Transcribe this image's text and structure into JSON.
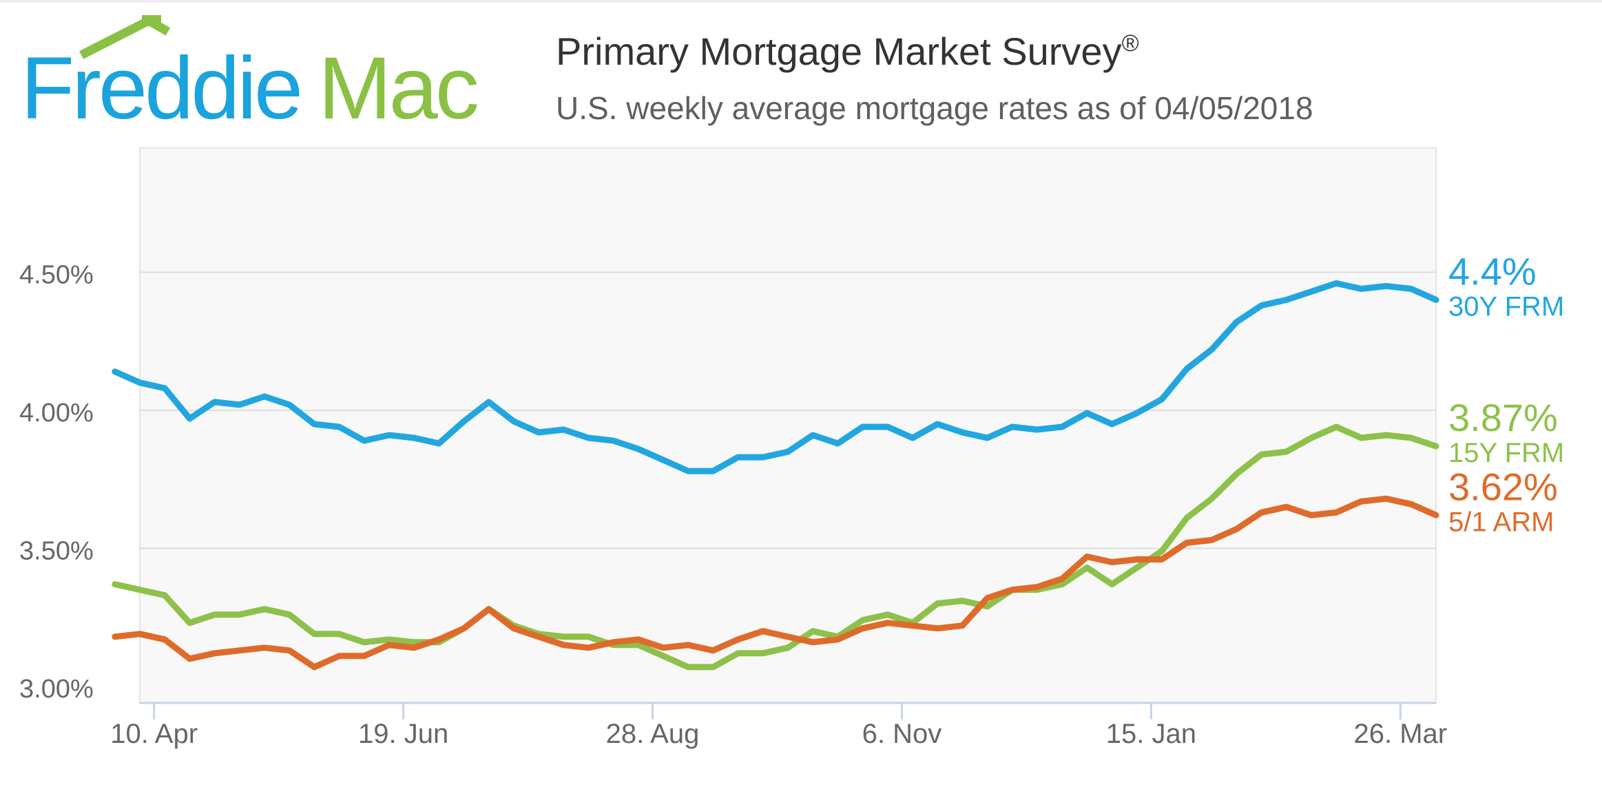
{
  "header": {
    "logo_text_part1": "Freddie",
    "logo_text_part2": "Mac",
    "title": "Primary Mortgage Market Survey",
    "title_mark": "®",
    "subtitle": "U.S. weekly average mortgage rates as of 04/05/2018"
  },
  "colors": {
    "brand_blue": "#1ba3dd",
    "brand_green": "#8ac044",
    "series_30y": "#22a6e0",
    "series_15y": "#8dc14a",
    "series_arm": "#df6b2b"
  },
  "chart_data": {
    "type": "line",
    "title": "Primary Mortgage Market Survey",
    "subtitle": "U.S. weekly average mortgage rates as of 04/05/2018",
    "xlabel": "",
    "ylabel": "",
    "ylim": [
      2.94,
      4.95
    ],
    "yticks": [
      3.0,
      3.5,
      4.0,
      4.5
    ],
    "ytick_labels": [
      "3.00%",
      "3.50%",
      "4.00%",
      "4.50%"
    ],
    "x_start": "2017-04-06",
    "x_end": "2018-04-05",
    "xticks": [
      "2017-04-10",
      "2017-06-19",
      "2017-08-28",
      "2017-11-06",
      "2018-01-15",
      "2018-03-26"
    ],
    "xtick_labels": [
      "10. Apr",
      "19. Jun",
      "28. Aug",
      "6. Nov",
      "15. Jan",
      "26. Mar"
    ],
    "grid": true,
    "legend": "right, end labels",
    "series": [
      {
        "name": "30Y FRM",
        "last_label": "4.4%",
        "color": "#22a6e0",
        "values": [
          4.14,
          4.1,
          4.08,
          3.97,
          4.03,
          4.02,
          4.05,
          4.02,
          3.95,
          3.94,
          3.89,
          3.91,
          3.9,
          3.88,
          3.96,
          4.03,
          3.96,
          3.92,
          3.93,
          3.9,
          3.89,
          3.86,
          3.82,
          3.78,
          3.78,
          3.83,
          3.83,
          3.85,
          3.91,
          3.88,
          3.94,
          3.94,
          3.9,
          3.95,
          3.92,
          3.9,
          3.94,
          3.93,
          3.94,
          3.99,
          3.95,
          3.99,
          4.04,
          4.15,
          4.22,
          4.32,
          4.38,
          4.4,
          4.43,
          4.46,
          4.44,
          4.45,
          4.44,
          4.4
        ]
      },
      {
        "name": "15Y FRM",
        "last_label": "3.87%",
        "color": "#8dc14a",
        "values": [
          3.37,
          3.35,
          3.33,
          3.23,
          3.26,
          3.26,
          3.28,
          3.26,
          3.19,
          3.19,
          3.16,
          3.17,
          3.16,
          3.16,
          3.21,
          3.28,
          3.22,
          3.19,
          3.18,
          3.18,
          3.15,
          3.15,
          3.11,
          3.07,
          3.07,
          3.12,
          3.12,
          3.14,
          3.2,
          3.18,
          3.24,
          3.26,
          3.23,
          3.3,
          3.31,
          3.29,
          3.35,
          3.35,
          3.37,
          3.43,
          3.37,
          3.43,
          3.49,
          3.61,
          3.68,
          3.77,
          3.84,
          3.85,
          3.9,
          3.94,
          3.9,
          3.91,
          3.9,
          3.87
        ]
      },
      {
        "name": "5/1 ARM",
        "last_label": "3.62%",
        "color": "#df6b2b",
        "values": [
          3.18,
          3.19,
          3.17,
          3.1,
          3.12,
          3.13,
          3.14,
          3.13,
          3.07,
          3.11,
          3.11,
          3.15,
          3.14,
          3.17,
          3.21,
          3.28,
          3.21,
          3.18,
          3.15,
          3.14,
          3.16,
          3.17,
          3.14,
          3.15,
          3.13,
          3.17,
          3.2,
          3.18,
          3.16,
          3.17,
          3.21,
          3.23,
          3.22,
          3.21,
          3.22,
          3.32,
          3.35,
          3.36,
          3.39,
          3.47,
          3.45,
          3.46,
          3.46,
          3.52,
          3.53,
          3.57,
          3.63,
          3.65,
          3.62,
          3.63,
          3.67,
          3.68,
          3.66,
          3.62
        ]
      }
    ]
  }
}
